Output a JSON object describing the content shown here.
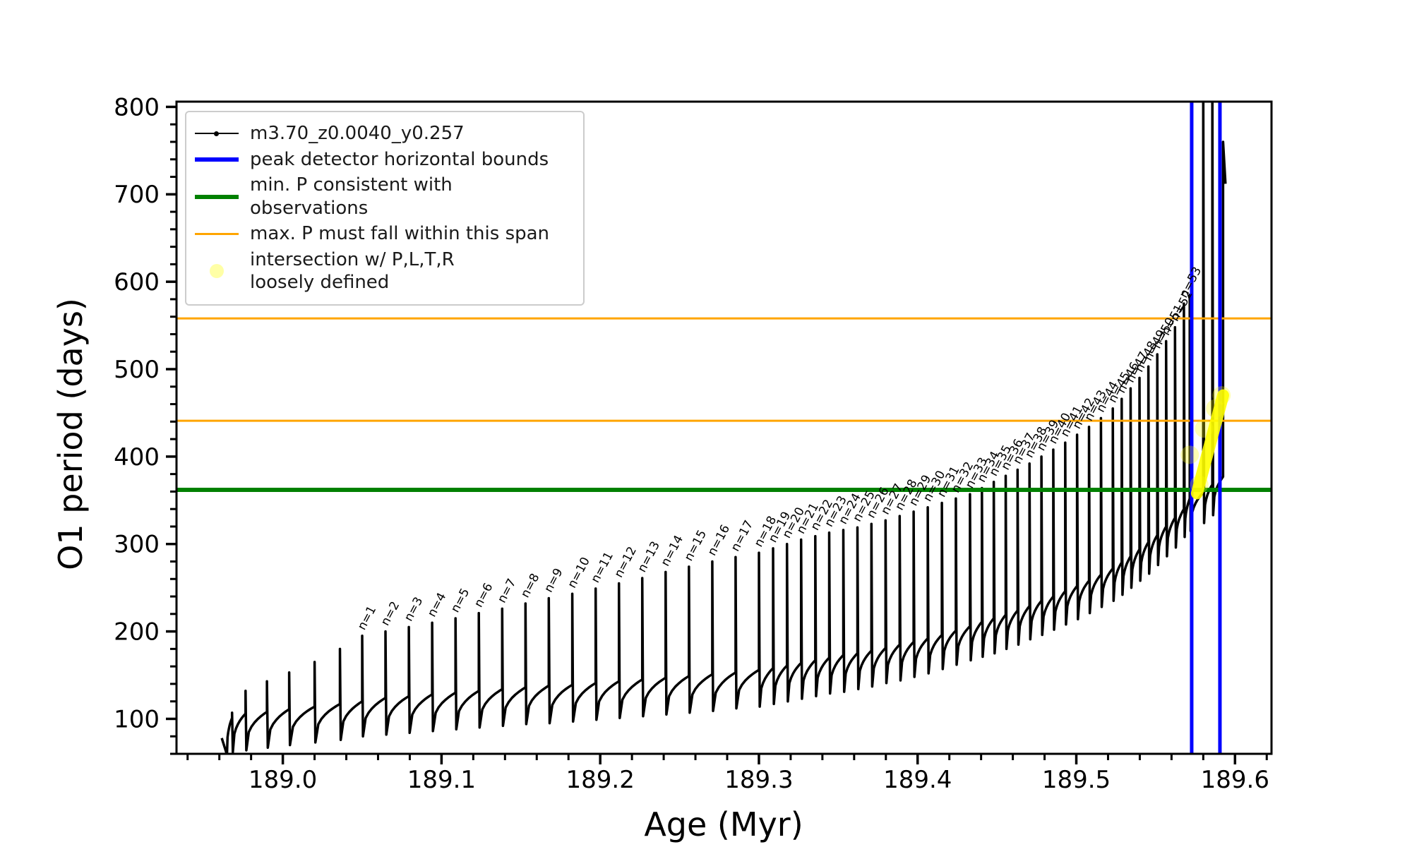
{
  "figure": {
    "background": "#ffffff"
  },
  "chart_data": {
    "type": "line",
    "title": "",
    "xlabel": "Age (Myr)",
    "ylabel": "O1 period (days)",
    "xlim": [
      188.933,
      189.623
    ],
    "ylim": [
      60,
      806
    ],
    "grid": false,
    "x_major_ticks": [
      189.0,
      189.1,
      189.2,
      189.3,
      189.4,
      189.5,
      189.6
    ],
    "x_minor_step": 0.02,
    "y_major_ticks": [
      100,
      200,
      300,
      400,
      500,
      600,
      700,
      800
    ],
    "y_minor_step": 20,
    "legend_position": "upper-left",
    "legend": [
      {
        "label": "m3.70_z0.0040_y0.257",
        "color": "#000000",
        "sample": "line-dot",
        "lw": 2
      },
      {
        "label": "peak detector horizontal bounds",
        "color": "#0000ff",
        "sample": "thick-line",
        "lw": 6
      },
      {
        "label": "min. P consistent with observations",
        "color": "#008000",
        "sample": "thick-line",
        "lw": 6
      },
      {
        "label": "max. P must fall within this span",
        "color": "#ffa500",
        "sample": "line",
        "lw": 3
      },
      {
        "label": "intersection w/ P,L,T,R",
        "label2": "loosely defined",
        "color": "#ffff00",
        "sample": "dot",
        "lw": 0
      }
    ],
    "hlines": [
      {
        "name": "max-period-span-upper-line",
        "value": 558,
        "color": "#ffa500",
        "width": 3
      },
      {
        "name": "max-period-span-lower-line",
        "value": 441,
        "color": "#ffa500",
        "width": 3
      },
      {
        "name": "min-period-line",
        "value": 362,
        "color": "#008000",
        "width": 6
      }
    ],
    "vlines": [
      {
        "name": "peak-detector-left-bound",
        "age": 189.5727,
        "color": "#0000ff",
        "width": 5
      },
      {
        "name": "peak-detector-right-bound",
        "age": 189.5905,
        "color": "#0000ff",
        "width": 5
      }
    ],
    "intersection_marker": {
      "color": "#ffff00",
      "x1": 189.576,
      "y1": 358,
      "x2": 189.5925,
      "y2": 470,
      "band_width": 17,
      "halos": [
        {
          "age": 189.5715,
          "value": 402
        },
        {
          "age": 189.5775,
          "value": 368
        },
        {
          "age": 189.5805,
          "value": 432
        },
        {
          "age": 189.5875,
          "value": 455
        },
        {
          "age": 189.5915,
          "value": 470
        }
      ]
    },
    "series": [
      {
        "name": "m3.70_z0.0040_y0.257",
        "color": "#000000",
        "pulse_label_prefix": "n=",
        "pulses": [
          {
            "n": null,
            "age": 188.968,
            "peak": 107,
            "low": 62
          },
          {
            "n": null,
            "age": 188.9765,
            "peak": 132,
            "low": 64
          },
          {
            "n": null,
            "age": 188.99,
            "peak": 143,
            "low": 67
          },
          {
            "n": null,
            "age": 189.004,
            "peak": 153,
            "low": 70
          },
          {
            "n": null,
            "age": 189.02,
            "peak": 165,
            "low": 73
          },
          {
            "n": null,
            "age": 189.036,
            "peak": 180,
            "low": 76
          },
          {
            "n": 1,
            "age": 189.05,
            "peak": 195,
            "low": 80
          },
          {
            "n": 2,
            "age": 189.0647,
            "peak": 200,
            "low": 82
          },
          {
            "n": 3,
            "age": 189.0794,
            "peak": 205,
            "low": 84
          },
          {
            "n": 4,
            "age": 189.0941,
            "peak": 210,
            "low": 86
          },
          {
            "n": 5,
            "age": 189.1088,
            "peak": 215,
            "low": 88
          },
          {
            "n": 6,
            "age": 189.1235,
            "peak": 221,
            "low": 90
          },
          {
            "n": 7,
            "age": 189.1382,
            "peak": 226,
            "low": 92
          },
          {
            "n": 8,
            "age": 189.1529,
            "peak": 232,
            "low": 94
          },
          {
            "n": 9,
            "age": 189.1676,
            "peak": 238,
            "low": 95
          },
          {
            "n": 10,
            "age": 189.1824,
            "peak": 243,
            "low": 97
          },
          {
            "n": 11,
            "age": 189.1971,
            "peak": 249,
            "low": 99
          },
          {
            "n": 12,
            "age": 189.2118,
            "peak": 255,
            "low": 101
          },
          {
            "n": 13,
            "age": 189.2265,
            "peak": 261,
            "low": 103
          },
          {
            "n": 14,
            "age": 189.2412,
            "peak": 268,
            "low": 105
          },
          {
            "n": 15,
            "age": 189.2559,
            "peak": 274,
            "low": 107
          },
          {
            "n": 16,
            "age": 189.2706,
            "peak": 280,
            "low": 109
          },
          {
            "n": 17,
            "age": 189.2853,
            "peak": 285,
            "low": 112
          },
          {
            "n": 18,
            "age": 189.3,
            "peak": 290,
            "low": 114
          },
          {
            "n": 19,
            "age": 189.3089,
            "peak": 295,
            "low": 117
          },
          {
            "n": 20,
            "age": 189.3177,
            "peak": 300,
            "low": 120
          },
          {
            "n": 21,
            "age": 189.3266,
            "peak": 305,
            "low": 123
          },
          {
            "n": 22,
            "age": 189.3355,
            "peak": 309,
            "low": 126
          },
          {
            "n": 23,
            "age": 189.3443,
            "peak": 313,
            "low": 129
          },
          {
            "n": 24,
            "age": 189.3532,
            "peak": 316,
            "low": 131
          },
          {
            "n": 25,
            "age": 189.3621,
            "peak": 319,
            "low": 134
          },
          {
            "n": 26,
            "age": 189.3709,
            "peak": 323,
            "low": 137
          },
          {
            "n": 27,
            "age": 189.3798,
            "peak": 327,
            "low": 141
          },
          {
            "n": 28,
            "age": 189.3887,
            "peak": 332,
            "low": 144
          },
          {
            "n": 29,
            "age": 189.3975,
            "peak": 337,
            "low": 148
          },
          {
            "n": 30,
            "age": 189.4064,
            "peak": 342,
            "low": 152
          },
          {
            "n": 31,
            "age": 189.4153,
            "peak": 347,
            "low": 157
          },
          {
            "n": 32,
            "age": 189.4241,
            "peak": 352,
            "low": 162
          },
          {
            "n": 33,
            "age": 189.433,
            "peak": 357,
            "low": 167
          },
          {
            "n": 34,
            "age": 189.4405,
            "peak": 364,
            "low": 171
          },
          {
            "n": 35,
            "age": 189.448,
            "peak": 371,
            "low": 175
          },
          {
            "n": 36,
            "age": 189.4555,
            "peak": 378,
            "low": 180
          },
          {
            "n": 37,
            "age": 189.463,
            "peak": 385,
            "low": 185
          },
          {
            "n": 38,
            "age": 189.4705,
            "peak": 392,
            "low": 191
          },
          {
            "n": 39,
            "age": 189.478,
            "peak": 400,
            "low": 196
          },
          {
            "n": 40,
            "age": 189.4855,
            "peak": 408,
            "low": 202
          },
          {
            "n": 41,
            "age": 189.493,
            "peak": 416,
            "low": 208
          },
          {
            "n": 42,
            "age": 189.5005,
            "peak": 425,
            "low": 214
          },
          {
            "n": 43,
            "age": 189.508,
            "peak": 434,
            "low": 221
          },
          {
            "n": 44,
            "age": 189.5155,
            "peak": 444,
            "low": 228
          },
          {
            "n": 45,
            "age": 189.523,
            "peak": 455,
            "low": 235
          },
          {
            "n": 46,
            "age": 189.5286,
            "peak": 466,
            "low": 242
          },
          {
            "n": 47,
            "age": 189.5342,
            "peak": 478,
            "low": 250
          },
          {
            "n": 48,
            "age": 189.5398,
            "peak": 490,
            "low": 258
          },
          {
            "n": 49,
            "age": 189.5454,
            "peak": 503,
            "low": 266
          },
          {
            "n": 50,
            "age": 189.551,
            "peak": 517,
            "low": 276
          },
          {
            "n": 51,
            "age": 189.5566,
            "peak": 532,
            "low": 286
          },
          {
            "n": 52,
            "age": 189.5622,
            "peak": 548,
            "low": 296
          },
          {
            "n": 53,
            "age": 189.5678,
            "peak": 575,
            "low": 308
          },
          {
            "n": null,
            "age": 189.5715,
            "peak": 585,
            "low": 315
          },
          {
            "n": null,
            "age": 189.58,
            "peak": 830,
            "low": 324
          },
          {
            "n": null,
            "age": 189.5857,
            "peak": 830,
            "low": 333
          },
          {
            "n": null,
            "age": 189.5925,
            "peak": 760,
            "low": 712,
            "last": true
          }
        ]
      }
    ]
  }
}
